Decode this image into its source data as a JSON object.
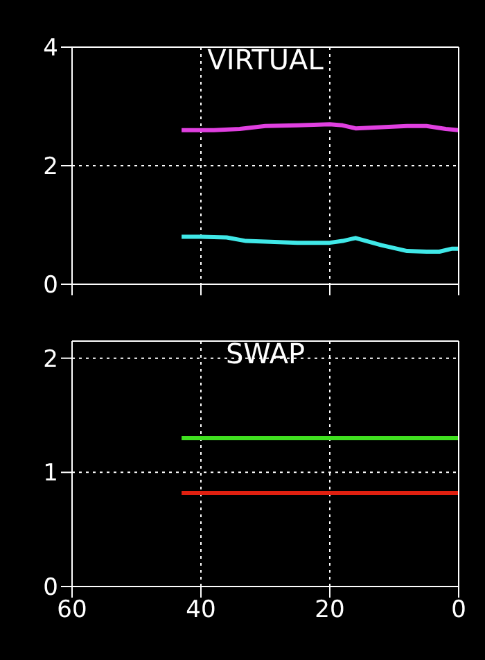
{
  "chart_data": [
    {
      "type": "line",
      "title": "VIRTUAL",
      "xlim": [
        60,
        0
      ],
      "xticks": [
        60,
        40,
        20,
        0
      ],
      "ylim": [
        0,
        4
      ],
      "yticks": [
        0,
        2,
        4
      ],
      "grid": true,
      "tick_labels": "y",
      "series": [
        {
          "color": "#e040e0",
          "x": [
            43,
            38,
            34,
            30,
            25,
            20,
            18,
            16,
            12,
            8,
            5,
            2,
            0
          ],
          "values": [
            2.6,
            2.6,
            2.62,
            2.67,
            2.68,
            2.7,
            2.68,
            2.63,
            2.65,
            2.67,
            2.67,
            2.62,
            2.6
          ]
        },
        {
          "color": "#40e8e8",
          "x": [
            43,
            40,
            36,
            33,
            30,
            25,
            20,
            18,
            16,
            12,
            8,
            5,
            3,
            1,
            0
          ],
          "values": [
            0.8,
            0.8,
            0.79,
            0.73,
            0.72,
            0.7,
            0.7,
            0.73,
            0.78,
            0.66,
            0.56,
            0.55,
            0.55,
            0.6,
            0.6
          ]
        }
      ]
    },
    {
      "type": "line",
      "title": "SWAP",
      "xlim": [
        60,
        0
      ],
      "xticks": [
        60,
        40,
        20,
        0
      ],
      "ylim": [
        0,
        2.15
      ],
      "yticks": [
        0,
        1,
        2
      ],
      "grid": true,
      "series": [
        {
          "color": "#40e020",
          "x": [
            43,
            0
          ],
          "values": [
            1.3,
            1.3
          ]
        },
        {
          "color": "#e02010",
          "x": [
            43,
            0
          ],
          "values": [
            0.82,
            0.82
          ]
        }
      ]
    }
  ]
}
